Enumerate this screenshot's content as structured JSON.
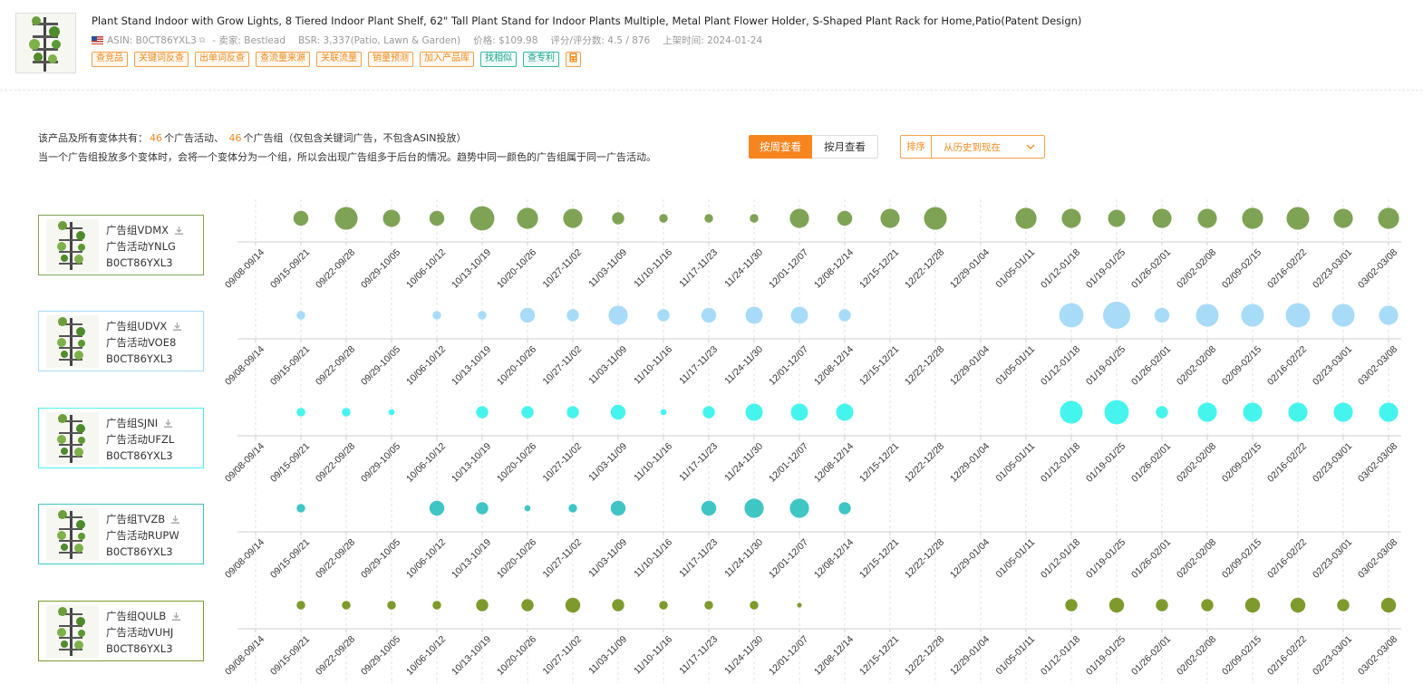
{
  "product": {
    "title": "Plant Stand Indoor with Grow Lights, 8 Tiered Indoor Plant Shelf, 62\" Tall Plant Stand for Indoor Plants Multiple, Metal Plant Flower Holder, S-Shaped Plant Rack for Home,Patio(Patent Design)",
    "asin": "ASIN: B0CT86YXL3",
    "seller": "- 卖家: Bestlead",
    "bsr": "BSR: 3,337(Patio, Lawn & Garden)",
    "price": "价格: $109.98",
    "rating": "评分/评分数: 4.5 / 876",
    "listed": "上架时间: 2024-01-24"
  },
  "tags": [
    "查竞品",
    "关键词反查",
    "出单词反查",
    "查流量来源",
    "关联流量",
    "销量预测",
    "加入产品库",
    "找相似",
    "查专利"
  ],
  "summary": {
    "prefix": "该产品及所有变体共有：",
    "campaigns": "46",
    "campaigns_label": "个广告活动、",
    "groups": "46",
    "groups_label": "个广告组（仅包含关键词广告，不包含ASIN投放）",
    "note": "当一个广告组投放多个变体时，会将一个变体分为一个组，所以会出现广告组多于后台的情况。趋势中同一颜色的广告组属于同一广告活动。"
  },
  "controls": {
    "week_btn": "按周查看",
    "month_btn": "按月查看",
    "sort_label": "排序",
    "sort_value": "从历史到现在"
  },
  "chart_data": {
    "type": "scatter",
    "x": [
      "09/08-09/14",
      "09/15-09/21",
      "09/22-09/28",
      "09/29-10/05",
      "10/06-10/12",
      "10/13-10/19",
      "10/20-10/26",
      "10/27-11/02",
      "11/03-11/09",
      "11/10-11/16",
      "11/17-11/23",
      "11/24-11/30",
      "12/01-12/07",
      "12/08-12/14",
      "12/15-12/21",
      "12/22-12/28",
      "12/29-01/04",
      "01/05-01/11",
      "01/12-01/18",
      "01/19-01/25",
      "01/26-02/01",
      "02/02-02/08",
      "02/09-02/15",
      "02/16-02/22",
      "02/23-03/01",
      "03/02-03/08"
    ],
    "series": [
      {
        "name": "广告组VDMX",
        "campaign": "广告活动YNLG",
        "asin": "B0CT86YXL3",
        "color": "#7ea355",
        "values": [
          null,
          3,
          7,
          4,
          3,
          8,
          6,
          5,
          2,
          1,
          1,
          1,
          5,
          3,
          5,
          7,
          null,
          6,
          5,
          4,
          5,
          5,
          6,
          7,
          5,
          6
        ]
      },
      {
        "name": "广告组UDVX",
        "campaign": "广告活动VOE8",
        "asin": "B0CT86YXL3",
        "color": "#a8dbf8",
        "values": [
          null,
          1,
          null,
          null,
          1,
          1,
          3,
          2,
          5,
          2,
          3,
          4,
          4,
          2,
          null,
          null,
          null,
          null,
          8,
          10,
          3,
          7,
          7,
          8,
          7,
          5
        ]
      },
      {
        "name": "广告组SJNI",
        "campaign": "广告活动UFZL",
        "asin": "B0CT86YXL3",
        "color": "#46f4ee",
        "values": [
          null,
          1,
          1,
          0.5,
          null,
          2,
          2,
          2,
          3,
          0.5,
          2,
          4,
          4,
          4,
          null,
          null,
          null,
          null,
          7,
          8,
          2,
          5,
          5,
          5,
          5,
          5
        ]
      },
      {
        "name": "广告组TVZB",
        "campaign": "广告活动RUPW",
        "asin": "B0CT86YXL3",
        "color": "#40c5c5",
        "values": [
          null,
          1,
          null,
          null,
          3,
          2,
          0.5,
          1,
          3,
          null,
          3,
          5,
          5,
          2,
          null,
          null,
          null,
          null,
          null,
          null,
          null,
          null,
          null,
          null,
          null,
          null
        ]
      },
      {
        "name": "广告组QULB",
        "campaign": "广告活动VUHJ",
        "asin": "B0CT86YXL3",
        "color": "#7e9a2c",
        "values": [
          null,
          1,
          1,
          1,
          1,
          2,
          2,
          3,
          2,
          1,
          1,
          1,
          0.3,
          null,
          null,
          null,
          null,
          null,
          2,
          3,
          2,
          2,
          3,
          3,
          2,
          3
        ]
      }
    ]
  },
  "icons": {
    "download": "download-icon",
    "external": "external-link-icon",
    "flag": "us-flag-icon",
    "calculator": "calculator-icon",
    "chevron": "chevron-down-icon"
  }
}
